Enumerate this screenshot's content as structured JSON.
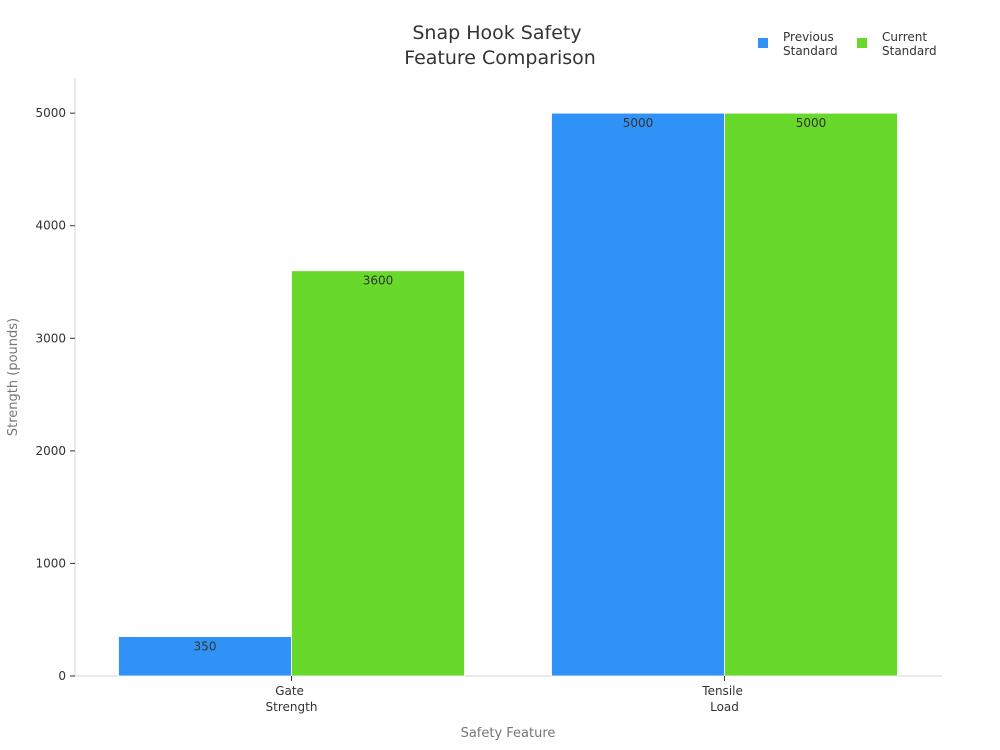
{
  "chart_data": {
    "type": "bar",
    "title_lines": [
      "Snap Hook Safety",
      "Feature Comparison"
    ],
    "xlabel": "Safety Feature",
    "ylabel": "Strength (pounds)",
    "categories": [
      {
        "lines": [
          "Gate",
          "Strength"
        ]
      },
      {
        "lines": [
          "Tensile",
          "Load"
        ]
      }
    ],
    "series": [
      {
        "legend_lines": [
          "Previous",
          "Standard"
        ],
        "color": "#3092f7",
        "values": [
          350,
          5000
        ],
        "labels": [
          "350",
          "5000"
        ]
      },
      {
        "legend_lines": [
          "Current",
          "Standard"
        ],
        "color": "#68d92b",
        "values": [
          3600,
          5000
        ],
        "labels": [
          "3600",
          "5000"
        ]
      }
    ],
    "ylim": [
      0,
      5250
    ],
    "yticks": [
      0,
      1000,
      2000,
      3000,
      4000,
      5000
    ],
    "ytick_labels": [
      "0",
      "1000",
      "2000",
      "3000",
      "4000",
      "5000"
    ],
    "grid": false,
    "legend_position": "top-right"
  }
}
